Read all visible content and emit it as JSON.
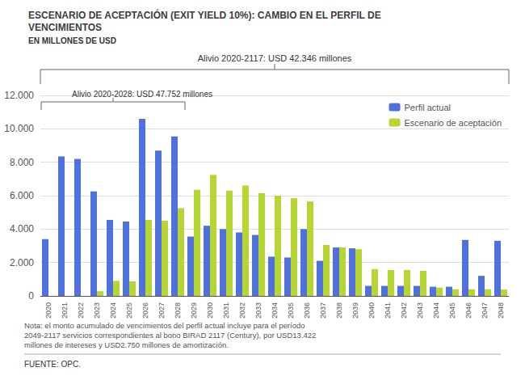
{
  "chart_data": {
    "type": "bar",
    "title": "ESCENARIO DE ACEPTACIÓN (EXIT YIELD 10%): CAMBIO EN EL PERFIL DE\nVENCIMIENTOS",
    "subtitle": "EN MILLONES DE USD",
    "annotations": [
      "Alivio 2020-2117: USD 42.346 millones",
      "Alivio 2020-2028: USD 47.752 millones"
    ],
    "note": "Nota: el monto acumulado de vencimientos del perfil actual incluye para el período\n2049-2117 servicios correspondientes al bono BIRAD 2117 (Century), por USD13.422\nmillones de intereses y USD2.750 millones de amortización.",
    "source": "FUENTE: OPC.",
    "categories": [
      "2020",
      "2021",
      "2022",
      "2023",
      "2024",
      "2025",
      "2026",
      "2027",
      "2028",
      "2029",
      "2030",
      "2031",
      "2032",
      "2033",
      "2034",
      "2035",
      "2036",
      "2037",
      "2038",
      "2039",
      "2040",
      "2041",
      "2042",
      "2043",
      "2044",
      "2045",
      "2046",
      "2047",
      "2048"
    ],
    "series": [
      {
        "name": "Perfil actual",
        "values": [
          3400,
          8350,
          8200,
          6250,
          4550,
          4450,
          10600,
          8700,
          9550,
          3550,
          4200,
          4000,
          3800,
          3650,
          2350,
          2300,
          4000,
          2100,
          2900,
          2850,
          600,
          600,
          600,
          600,
          550,
          550,
          3350,
          1200,
          3300
        ]
      },
      {
        "name": "Escenario de aceptación",
        "values": [
          0,
          0,
          0,
          280,
          900,
          880,
          4550,
          4500,
          5250,
          6350,
          7250,
          6300,
          6600,
          6150,
          6000,
          5850,
          5650,
          3050,
          2900,
          2800,
          1600,
          1550,
          1550,
          1500,
          500,
          400,
          400,
          400,
          380
        ]
      }
    ],
    "ylim": [
      0,
      12000
    ],
    "yticks": [
      0,
      {
        "value": 2000,
        "label": "2.000"
      },
      {
        "value": 4000,
        "label": "4.000"
      },
      {
        "value": 6000,
        "label": "6.000"
      },
      {
        "value": 8000,
        "label": "8.000"
      },
      {
        "value": 10000,
        "label": "10.000"
      },
      {
        "value": 12000,
        "label": "12.000"
      }
    ],
    "grid": true,
    "legend": "upper right"
  }
}
